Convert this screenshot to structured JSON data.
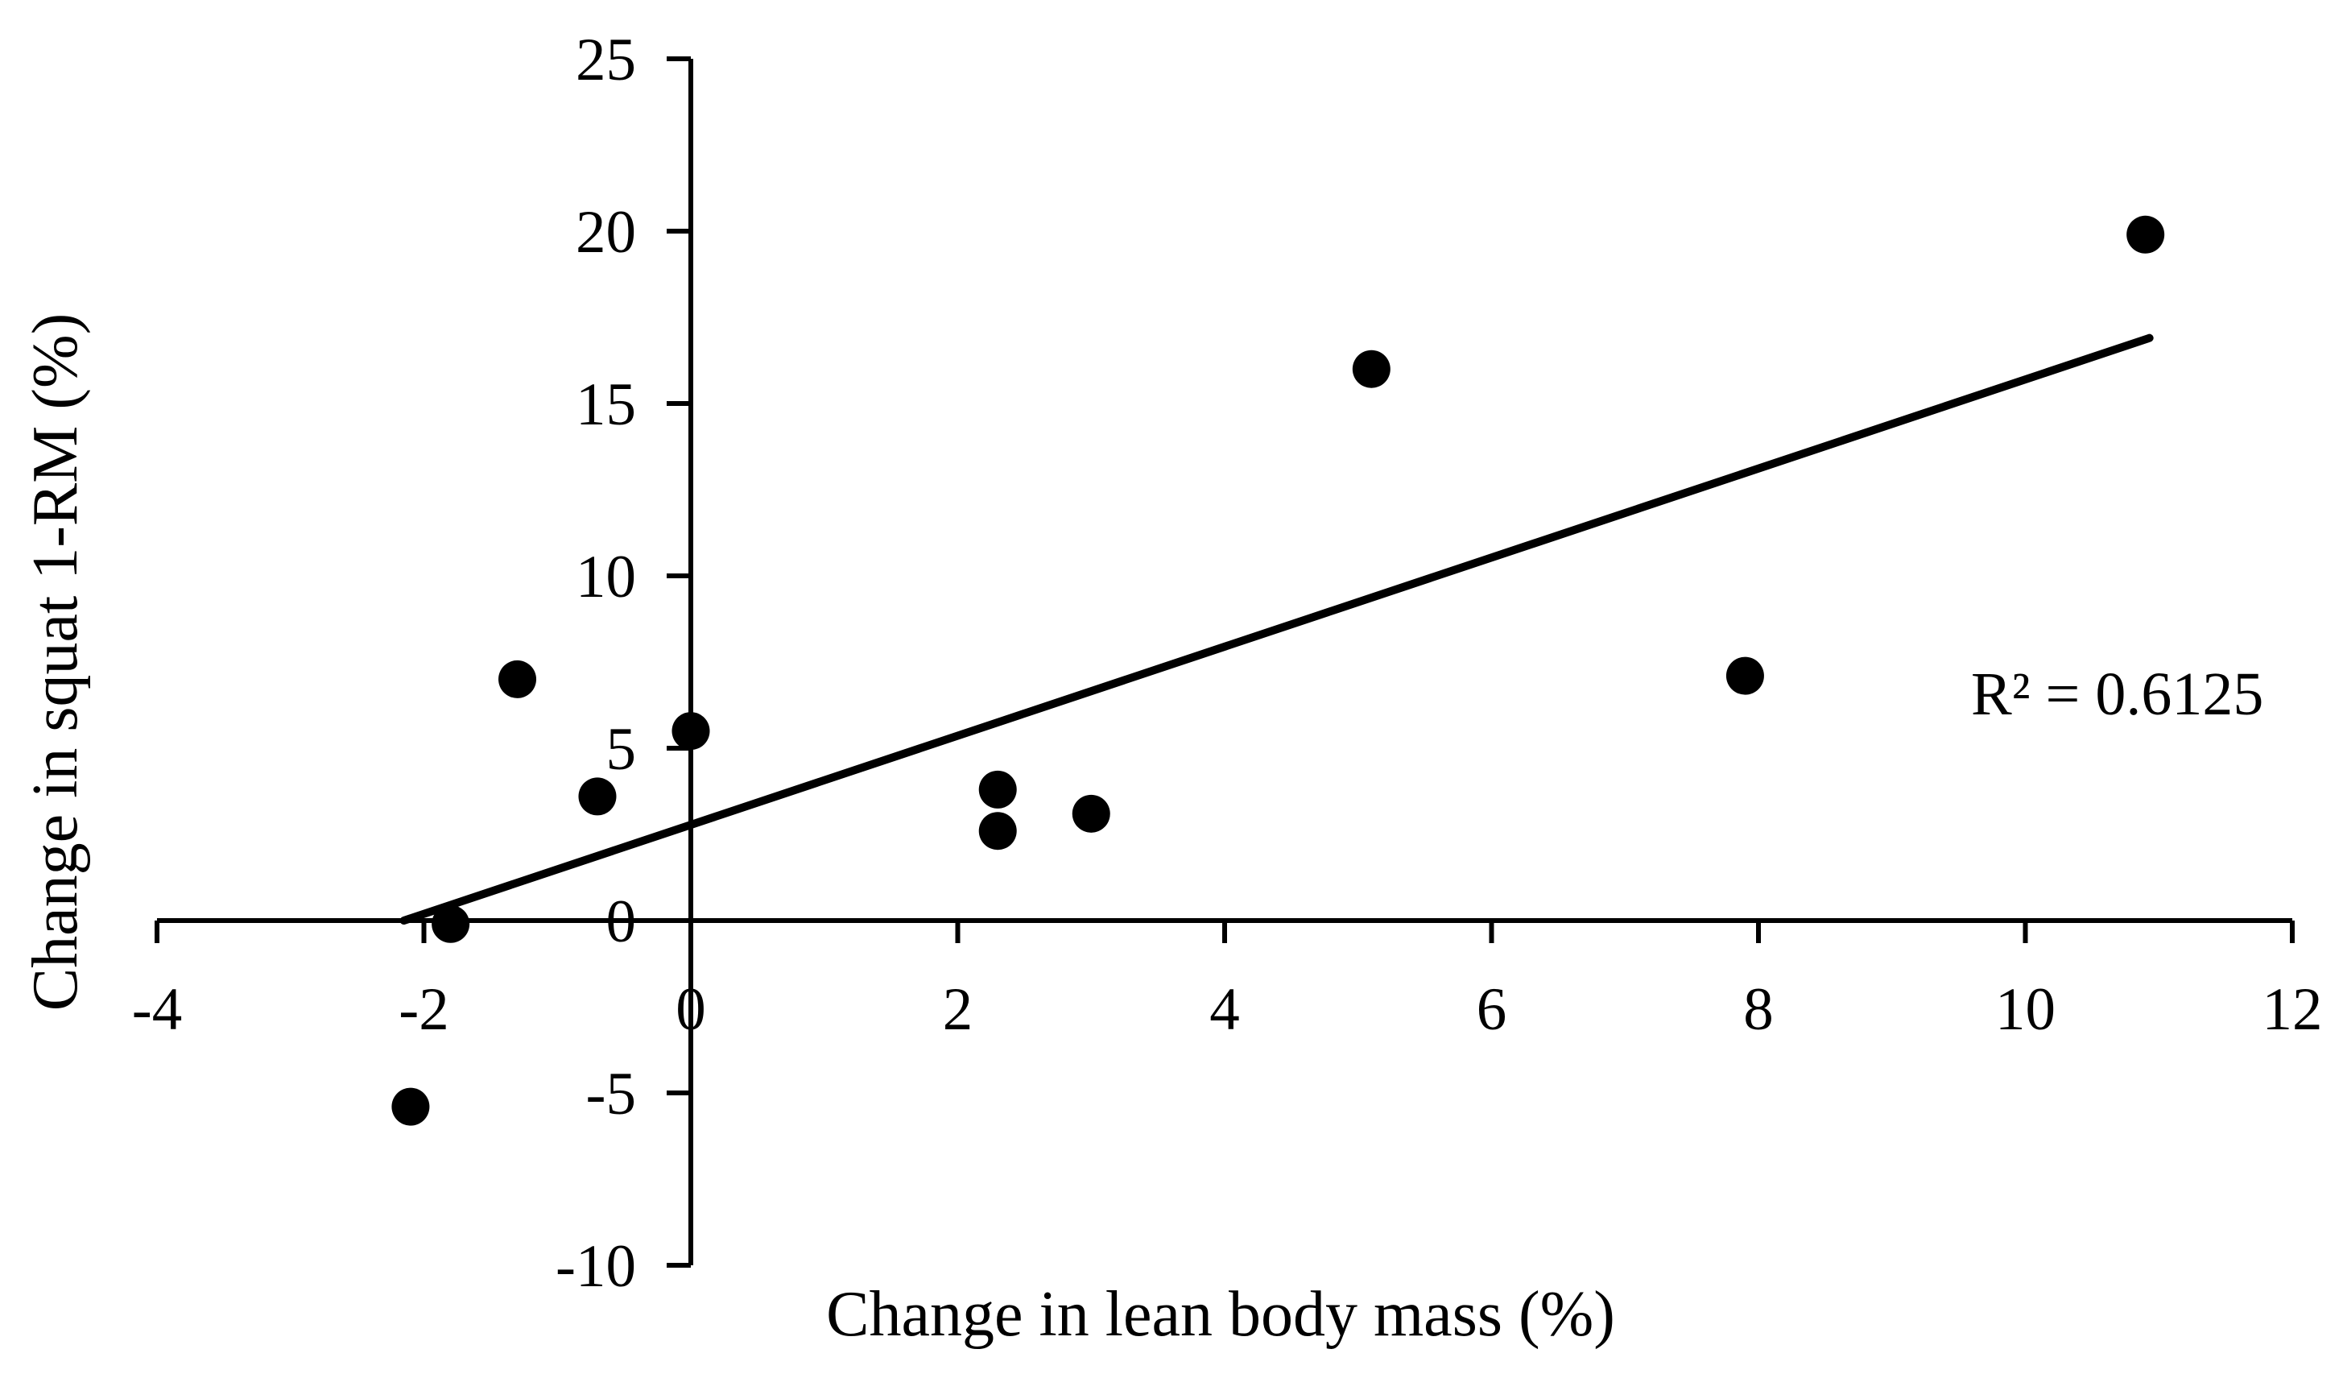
{
  "page": {
    "background": "#ffffff",
    "ink_color": "#000000"
  },
  "chart_data": {
    "type": "scatter",
    "title": "",
    "xlabel": "Change in lean body mass (%)",
    "ylabel": "Change in squat 1-RM (%)",
    "xlim": [
      -4,
      12
    ],
    "ylim": [
      -10,
      25
    ],
    "x_ticks": [
      -4,
      -2,
      0,
      2,
      4,
      6,
      8,
      10,
      12
    ],
    "y_ticks": [
      25,
      20,
      15,
      10,
      5,
      0,
      -5,
      -10
    ],
    "grid": false,
    "legend_position": "none",
    "marker": {
      "shape": "circle",
      "fill": "#000000",
      "radius_px": 23.5
    },
    "points": [
      {
        "x": -2.1,
        "y": -5.4
      },
      {
        "x": -1.8,
        "y": -0.1
      },
      {
        "x": -1.3,
        "y": 7.0
      },
      {
        "x": -0.7,
        "y": 3.6
      },
      {
        "x": 0.0,
        "y": 5.5
      },
      {
        "x": 2.3,
        "y": 3.8
      },
      {
        "x": 2.3,
        "y": 2.6
      },
      {
        "x": 3.0,
        "y": 3.1
      },
      {
        "x": 5.1,
        "y": 16.0
      },
      {
        "x": 7.9,
        "y": 7.1
      },
      {
        "x": 10.9,
        "y": 19.9
      }
    ],
    "trendline": {
      "x_start": -2.15,
      "y_start": 0.0,
      "x_end": 10.93,
      "y_end": 16.9,
      "r_squared": 0.6125,
      "r_squared_label": "R² = 0.6125"
    }
  }
}
